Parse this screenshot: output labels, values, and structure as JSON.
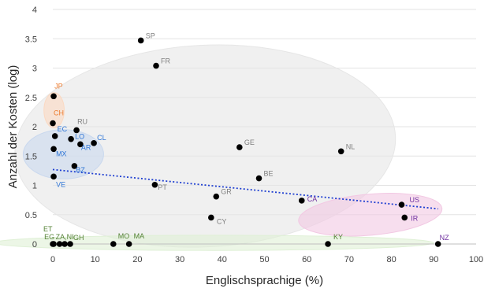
{
  "chart_data": {
    "type": "scatter",
    "xlabel": "Englischsprachige (%)",
    "ylabel": "Anzahl der Kosten (log)",
    "xlim": [
      0,
      100
    ],
    "ylim": [
      0,
      4
    ],
    "x_ticks": [
      0,
      10,
      20,
      30,
      40,
      50,
      60,
      70,
      80,
      90,
      100
    ],
    "y_ticks": [
      0,
      0.5,
      1,
      1.5,
      2,
      2.5,
      3,
      3.5,
      4
    ],
    "grid": "horizontal",
    "colors": {
      "point": "#000000",
      "trendline": "#1f3fd1",
      "orange": "#ed7d31",
      "blue": "#2e75d6",
      "gray": "#7f7f7f",
      "green": "#548235",
      "purple": "#7030a0"
    },
    "trendline": {
      "x": [
        0,
        91
      ],
      "y": [
        1.27,
        0.6
      ],
      "style": "dotted"
    },
    "clusters": [
      {
        "group": "gray",
        "fill": "#e6e6e6",
        "cx": 36,
        "cy": 1.67,
        "rx": 45,
        "ry": 1.72,
        "rotate": -3
      },
      {
        "group": "blue",
        "fill": "#c9d8ee",
        "cx": 2.5,
        "cy": 1.53,
        "rx": 9.5,
        "ry": 0.42,
        "rotate": 0
      },
      {
        "group": "orange",
        "fill": "#fbd9c2",
        "cx": 0.3,
        "cy": 2.28,
        "rx": 2.4,
        "ry": 0.3,
        "rotate": 0
      },
      {
        "group": "purple",
        "fill": "#f2c8e3",
        "cx": 75,
        "cy": 0.5,
        "rx": 17,
        "ry": 0.35,
        "rotate": -5
      },
      {
        "group": "green",
        "fill": "#dff0d6",
        "cx": 38,
        "cy": 0.02,
        "rx": 52,
        "ry": 0.13,
        "rotate": 0
      }
    ],
    "points": [
      {
        "label": "SP",
        "x": 20.8,
        "y": 3.47,
        "group": "gray"
      },
      {
        "label": "FR",
        "x": 24.4,
        "y": 3.04,
        "group": "gray"
      },
      {
        "label": "JP",
        "x": 0.2,
        "y": 2.52,
        "group": "orange"
      },
      {
        "label": "CH",
        "x": 0,
        "y": 2.06,
        "group": "orange"
      },
      {
        "label": "RU",
        "x": 5.6,
        "y": 1.94,
        "group": "gray"
      },
      {
        "label": "EC",
        "x": 0.5,
        "y": 1.84,
        "group": "blue"
      },
      {
        "label": "LO",
        "x": 4.3,
        "y": 1.79,
        "group": "blue"
      },
      {
        "label": "CL",
        "x": 9.7,
        "y": 1.72,
        "group": "blue"
      },
      {
        "label": "AR",
        "x": 6.5,
        "y": 1.7,
        "group": "blue"
      },
      {
        "label": "MX",
        "x": 0.2,
        "y": 1.62,
        "group": "blue"
      },
      {
        "label": "GE",
        "x": 44.1,
        "y": 1.65,
        "group": "gray"
      },
      {
        "label": "NL",
        "x": 68.1,
        "y": 1.58,
        "group": "gray"
      },
      {
        "label": "BZ",
        "x": 5.1,
        "y": 1.33,
        "group": "blue"
      },
      {
        "label": "VE",
        "x": 0.2,
        "y": 1.15,
        "group": "blue"
      },
      {
        "label": "BE",
        "x": 48.7,
        "y": 1.12,
        "group": "gray"
      },
      {
        "label": "PT",
        "x": 24.1,
        "y": 1.01,
        "group": "gray"
      },
      {
        "label": "GR",
        "x": 38.6,
        "y": 0.81,
        "group": "gray"
      },
      {
        "label": "CA",
        "x": 58.8,
        "y": 0.74,
        "group": "purple"
      },
      {
        "label": "US",
        "x": 82.4,
        "y": 0.67,
        "group": "purple"
      },
      {
        "label": "CY",
        "x": 37.4,
        "y": 0.45,
        "group": "gray"
      },
      {
        "label": "IR",
        "x": 83.1,
        "y": 0.45,
        "group": "purple"
      },
      {
        "label": "ET",
        "x": 0,
        "y": 0,
        "group": "green"
      },
      {
        "label": "EG",
        "x": 0.2,
        "y": 0,
        "group": "green"
      },
      {
        "label": "ZA,NI",
        "x": 1.6,
        "y": 0,
        "group": "green"
      },
      {
        "label": "",
        "x": 2.8,
        "y": 0,
        "group": "green"
      },
      {
        "label": "GH",
        "x": 4.1,
        "y": 0,
        "group": "green"
      },
      {
        "label": "MO",
        "x": 14.3,
        "y": 0,
        "group": "green"
      },
      {
        "label": "MA",
        "x": 18,
        "y": 0,
        "group": "green"
      },
      {
        "label": "KY",
        "x": 65,
        "y": 0,
        "group": "green"
      },
      {
        "label": "NZ",
        "x": 91,
        "y": 0,
        "group": "purple"
      }
    ]
  }
}
